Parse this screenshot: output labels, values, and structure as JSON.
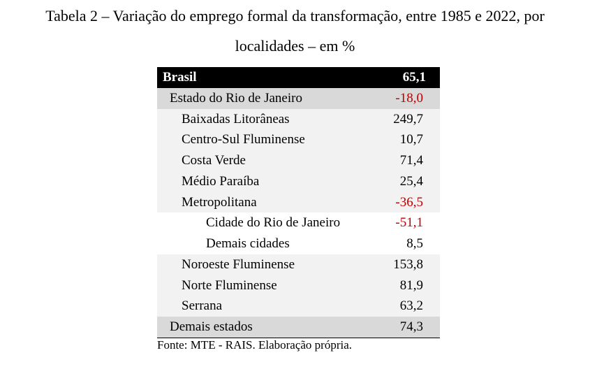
{
  "title_line1": "Tabela 2 – Variação do emprego formal da transformação, entre 1985 e 2022, por",
  "title_line2": "localidades – em %",
  "table": {
    "header": {
      "label": "Brasil",
      "value": "65,1"
    },
    "rows": [
      {
        "label": "Estado do Rio de Janeiro",
        "value": "-18,0"
      },
      {
        "label": "Baixadas Litorâneas",
        "value": "249,7"
      },
      {
        "label": "Centro-Sul Fluminense",
        "value": "10,7"
      },
      {
        "label": "Costa Verde",
        "value": "71,4"
      },
      {
        "label": "Médio Paraíba",
        "value": "25,4"
      },
      {
        "label": "Metropolitana",
        "value": "-36,5"
      },
      {
        "label": "Cidade do Rio de Janeiro",
        "value": "-51,1"
      },
      {
        "label": "Demais cidades",
        "value": "8,5"
      },
      {
        "label": "Noroeste Fluminense",
        "value": "153,8"
      },
      {
        "label": "Norte Fluminense",
        "value": "81,9"
      },
      {
        "label": "Serrana",
        "value": "63,2"
      },
      {
        "label": "Demais estados",
        "value": "74,3"
      }
    ]
  },
  "source": "Fonte: MTE - RAIS. Elaboração própria.",
  "colors": {
    "header_bg": "#000000",
    "level1_bg": "#d9d9d9",
    "level2_bg": "#f2f2f2",
    "level3_bg": "#ffffff",
    "negative_text": "#c00000"
  }
}
